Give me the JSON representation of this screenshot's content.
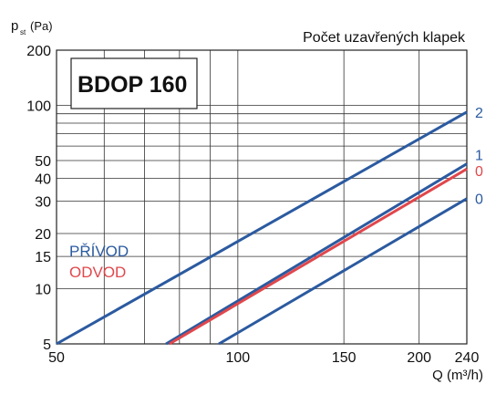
{
  "chart_data": {
    "type": "line",
    "title": "BDOP 160",
    "ylabel_main": "p",
    "ylabel_sub": "st",
    "ylabel_unit": "(Pa)",
    "xlabel": "Q (m³/h)",
    "legend_title": "Počet uzavřených klapek",
    "x_scale": "log",
    "y_scale": "log",
    "xlim": [
      50,
      240
    ],
    "ylim": [
      5,
      200
    ],
    "x_ticks": [
      50,
      100,
      150,
      200,
      240
    ],
    "x_tick_labels": [
      "50",
      "100",
      "150",
      "200",
      "240"
    ],
    "y_ticks": [
      5,
      10,
      15,
      20,
      30,
      40,
      50,
      100,
      200
    ],
    "y_tick_labels": [
      "5",
      "10",
      "15",
      "20",
      "30",
      "40",
      "50",
      "100",
      "200"
    ],
    "x_grid": [
      50,
      60,
      70,
      80,
      90,
      100,
      150,
      200,
      240
    ],
    "y_grid": [
      5,
      10,
      15,
      20,
      30,
      40,
      50,
      60,
      70,
      80,
      90,
      100,
      200
    ],
    "group_labels": [
      {
        "text": "PŘÍVOD",
        "color": "#2b5aa0"
      },
      {
        "text": "ODVOD",
        "color": "#e0474c"
      }
    ],
    "series": [
      {
        "name": "2",
        "color": "#2b5aa0",
        "x": [
          50,
          240
        ],
        "y": [
          5.0,
          92
        ]
      },
      {
        "name": "1",
        "color": "#2b5aa0",
        "x": [
          76,
          240
        ],
        "y": [
          5.0,
          48
        ]
      },
      {
        "name": "0",
        "color": "#e0474c",
        "x": [
          77,
          240
        ],
        "y": [
          5.0,
          45
        ]
      },
      {
        "name": "0",
        "color": "#2b5aa0",
        "x": [
          93,
          240
        ],
        "y": [
          5.0,
          31
        ]
      }
    ]
  }
}
